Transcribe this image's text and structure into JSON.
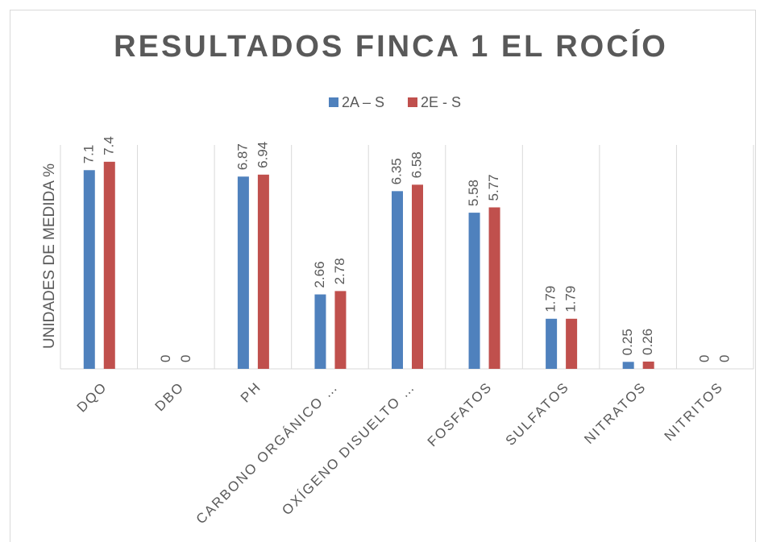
{
  "chart_data": {
    "type": "bar",
    "title": "RESULTADOS FINCA 1 EL ROCÍO",
    "ylabel": "UNIDADES DE MEDIDA %",
    "categories": [
      "DQO",
      "DBO",
      "PH",
      "CARBONO ORGÁNICO …",
      "OXÍGENO DISUELTO …",
      "FOSFATOS",
      "SULFATOS",
      "NITRATOS",
      "NITRITOS"
    ],
    "series": [
      {
        "name": "2A – S",
        "color": "#4f81bd",
        "values": [
          7.1,
          0,
          6.87,
          2.66,
          6.35,
          5.58,
          1.79,
          0.25,
          0
        ]
      },
      {
        "name": "2E - S",
        "color": "#c0504d",
        "values": [
          7.4,
          0,
          6.94,
          2.78,
          6.58,
          5.77,
          1.79,
          0.26,
          0
        ]
      }
    ],
    "ylim": [
      0,
      8
    ],
    "legend": "top",
    "grid": true
  }
}
